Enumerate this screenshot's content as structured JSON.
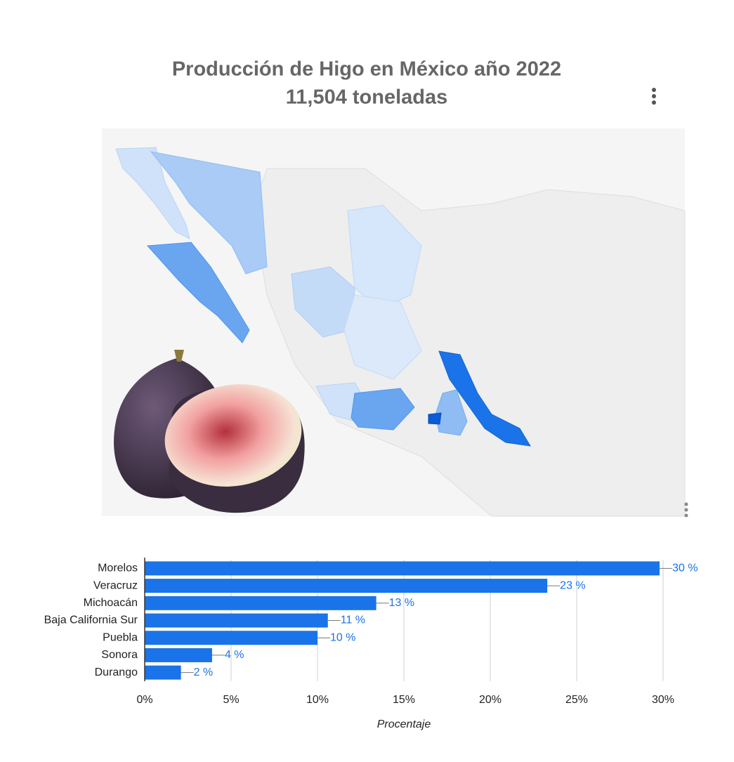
{
  "chart_data": {
    "type": "hbar",
    "title": "Producción de Higo en México año 2022",
    "subtitle": "11,504 toneladas",
    "x_label": "Procentaje",
    "categories": [
      "Morelos",
      "Veracruz",
      "Michoacán",
      "Baja California Sur",
      "Puebla",
      "Sonora",
      "Durango"
    ],
    "values": [
      29.8,
      23.3,
      13.4,
      10.6,
      10.0,
      3.9,
      2.1
    ],
    "value_labels": [
      "30 %",
      "23 %",
      "13 %",
      "11 %",
      "10 %",
      "4 %",
      "2 %"
    ],
    "color": "#1a73e8",
    "xlim": [
      0,
      30
    ],
    "xticks": [
      {
        "value": 0,
        "label": "0%"
      },
      {
        "value": 5,
        "label": "5%"
      },
      {
        "value": 10,
        "label": "10%"
      },
      {
        "value": 15,
        "label": "15%"
      },
      {
        "value": 20,
        "label": "20%"
      },
      {
        "value": 25,
        "label": "25%"
      },
      {
        "value": 30,
        "label": "30%"
      }
    ],
    "grid": true
  }
}
